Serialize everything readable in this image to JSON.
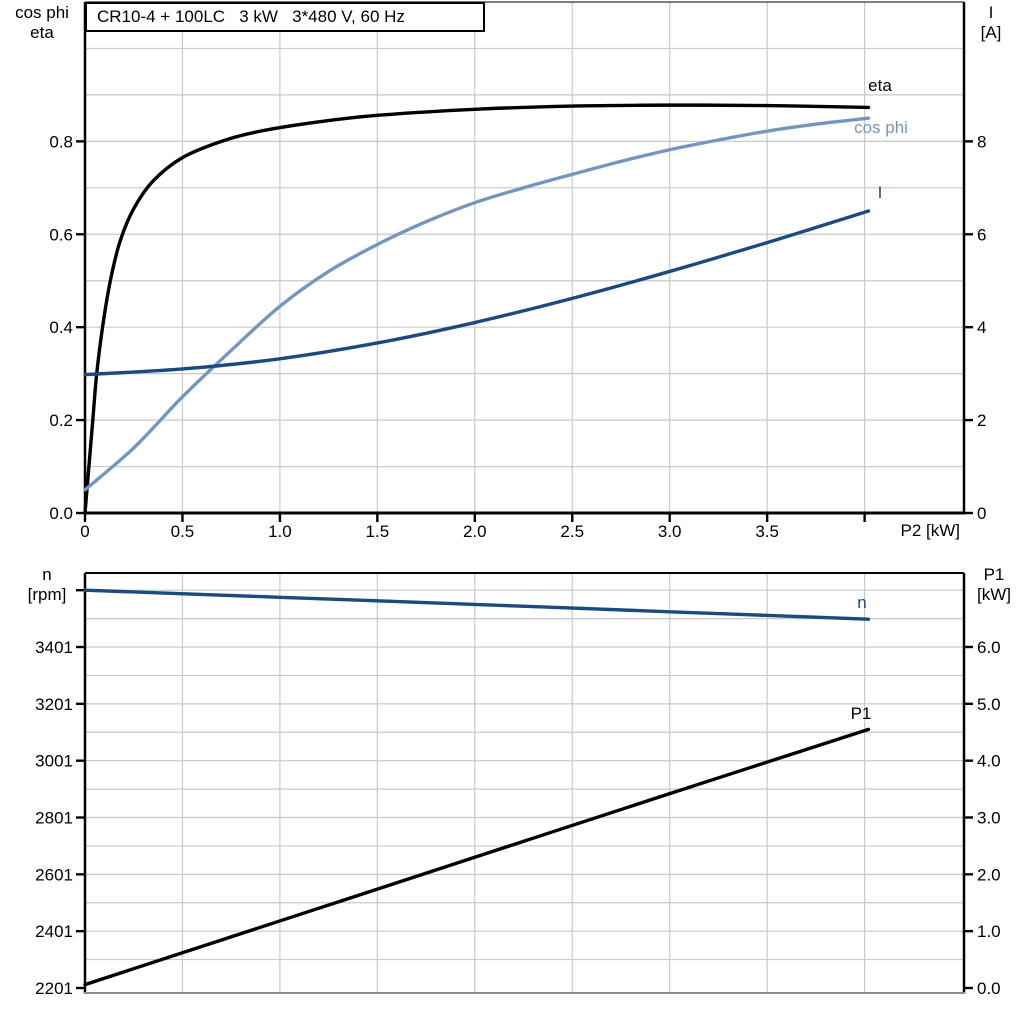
{
  "title_box": {
    "text": "CR10-4 + 100LC   3 kW   3*480 V, 60 Hz"
  },
  "colors": {
    "black": "#000000",
    "light_blue": "#7595BF",
    "dark_blue": "#1A4A7E",
    "grid": "#c6cacd",
    "frame_gray": "#8a8e91"
  },
  "chart_data": [
    {
      "type": "line",
      "title": "CR10-4 + 100LC   3 kW   3*480 V, 60 Hz",
      "x_axis": {
        "label": "P2 [kW]",
        "min": 0,
        "max": 4.51,
        "ticks": [
          {
            "v": 0,
            "label": "0"
          },
          {
            "v": 0.5,
            "label": "0.5"
          },
          {
            "v": 1,
            "label": "1.0"
          },
          {
            "v": 1.5,
            "label": "1.5"
          },
          {
            "v": 2,
            "label": "2.0"
          },
          {
            "v": 2.5,
            "label": "2.5"
          },
          {
            "v": 3,
            "label": "3.0"
          },
          {
            "v": 3.5,
            "label": "3.5"
          },
          {
            "v": 4,
            "label": ""
          }
        ],
        "grid": {
          "start": 0.5,
          "step": 0.5,
          "end": 4.0
        }
      },
      "left_axis": {
        "label_lines": [
          "cos phi",
          "eta"
        ],
        "min": 0,
        "max": 1.1,
        "ticks": [
          {
            "v": 0,
            "label": "0.0"
          },
          {
            "v": 0.2,
            "label": "0.2"
          },
          {
            "v": 0.4,
            "label": "0.4"
          },
          {
            "v": 0.6,
            "label": "0.6"
          },
          {
            "v": 0.8,
            "label": "0.8"
          }
        ],
        "grid": {
          "start": 0.1,
          "step": 0.1,
          "end": 1.0
        }
      },
      "right_axis": {
        "label_lines": [
          "I",
          "[A]"
        ],
        "min": 0,
        "max": 11,
        "ticks": [
          {
            "v": 0,
            "label": "0"
          },
          {
            "v": 2,
            "label": "2"
          },
          {
            "v": 4,
            "label": "4"
          },
          {
            "v": 6,
            "label": "6"
          },
          {
            "v": 8,
            "label": "8"
          }
        ]
      },
      "legend_position": "on-curve",
      "grid_on": true,
      "series": [
        {
          "name": "eta",
          "color": "#000000",
          "axis": "left",
          "points": [
            [
              0,
              0
            ],
            [
              0.02,
              0.1
            ],
            [
              0.04,
              0.2
            ],
            [
              0.06,
              0.3
            ],
            [
              0.09,
              0.4
            ],
            [
              0.13,
              0.5
            ],
            [
              0.18,
              0.585
            ],
            [
              0.25,
              0.655
            ],
            [
              0.35,
              0.715
            ],
            [
              0.5,
              0.765
            ],
            [
              0.7,
              0.8
            ],
            [
              0.9,
              0.822
            ],
            [
              1.2,
              0.842
            ],
            [
              1.5,
              0.856
            ],
            [
              2,
              0.869
            ],
            [
              2.5,
              0.876
            ],
            [
              3,
              0.878
            ],
            [
              3.5,
              0.877
            ],
            [
              4.02,
              0.873
            ]
          ]
        },
        {
          "name": "cos phi",
          "color": "#7595BF",
          "axis": "left",
          "points": [
            [
              0,
              0.05
            ],
            [
              0.25,
              0.14
            ],
            [
              0.5,
              0.25
            ],
            [
              0.75,
              0.35
            ],
            [
              1,
              0.445
            ],
            [
              1.25,
              0.52
            ],
            [
              1.5,
              0.578
            ],
            [
              1.75,
              0.627
            ],
            [
              2,
              0.668
            ],
            [
              2.25,
              0.7
            ],
            [
              2.5,
              0.729
            ],
            [
              2.75,
              0.757
            ],
            [
              3,
              0.782
            ],
            [
              3.25,
              0.803
            ],
            [
              3.5,
              0.822
            ],
            [
              3.75,
              0.837
            ],
            [
              4.02,
              0.85
            ]
          ]
        },
        {
          "name": "I",
          "color": "#1A4A7E",
          "axis": "right",
          "points": [
            [
              0,
              2.98
            ],
            [
              0.5,
              3.1
            ],
            [
              1,
              3.32
            ],
            [
              1.5,
              3.66
            ],
            [
              2,
              4.1
            ],
            [
              2.5,
              4.62
            ],
            [
              3,
              5.2
            ],
            [
              3.5,
              5.82
            ],
            [
              4.02,
              6.5
            ]
          ]
        }
      ]
    },
    {
      "type": "line",
      "title": "",
      "x_axis": {
        "label": "",
        "min": 0,
        "max": 4.51,
        "ticks": [],
        "grid": {
          "start": 0.5,
          "step": 0.5,
          "end": 4.0
        }
      },
      "left_axis": {
        "label_lines": [
          "n",
          "[rpm]"
        ],
        "min": 2183.4,
        "max": 3661.5,
        "ticks": [
          {
            "v": 2201,
            "label": "2201"
          },
          {
            "v": 2401,
            "label": "2401"
          },
          {
            "v": 2601,
            "label": "2601"
          },
          {
            "v": 2801,
            "label": "2801"
          },
          {
            "v": 3001,
            "label": "3001"
          },
          {
            "v": 3201,
            "label": "3201"
          },
          {
            "v": 3401,
            "label": "3401"
          },
          {
            "v": 3601,
            "label": ""
          }
        ],
        "grid": {
          "start": 2301,
          "step": 100,
          "end": 3601
        }
      },
      "right_axis": {
        "label_lines": [
          "P1",
          "[kW]"
        ],
        "min": -0.088,
        "max": 7.302,
        "ticks": [
          {
            "v": 0,
            "label": "0.0"
          },
          {
            "v": 1,
            "label": "1.0"
          },
          {
            "v": 2,
            "label": "2.0"
          },
          {
            "v": 3,
            "label": "3.0"
          },
          {
            "v": 4,
            "label": "4.0"
          },
          {
            "v": 5,
            "label": "5.0"
          },
          {
            "v": 6,
            "label": "6.0"
          }
        ]
      },
      "legend_position": "on-curve",
      "grid_on": true,
      "series": [
        {
          "name": "n",
          "color": "#1A4A7E",
          "axis": "left",
          "points": [
            [
              0,
              3601
            ],
            [
              1,
              3576
            ],
            [
              2,
              3551
            ],
            [
              3,
              3525
            ],
            [
              4.02,
              3499
            ]
          ]
        },
        {
          "name": "P1",
          "color": "#000000",
          "axis": "right",
          "points": [
            [
              0,
              0.06
            ],
            [
              1,
              1.18
            ],
            [
              2,
              2.3
            ],
            [
              3,
              3.42
            ],
            [
              4.02,
              4.55
            ]
          ]
        }
      ]
    }
  ]
}
